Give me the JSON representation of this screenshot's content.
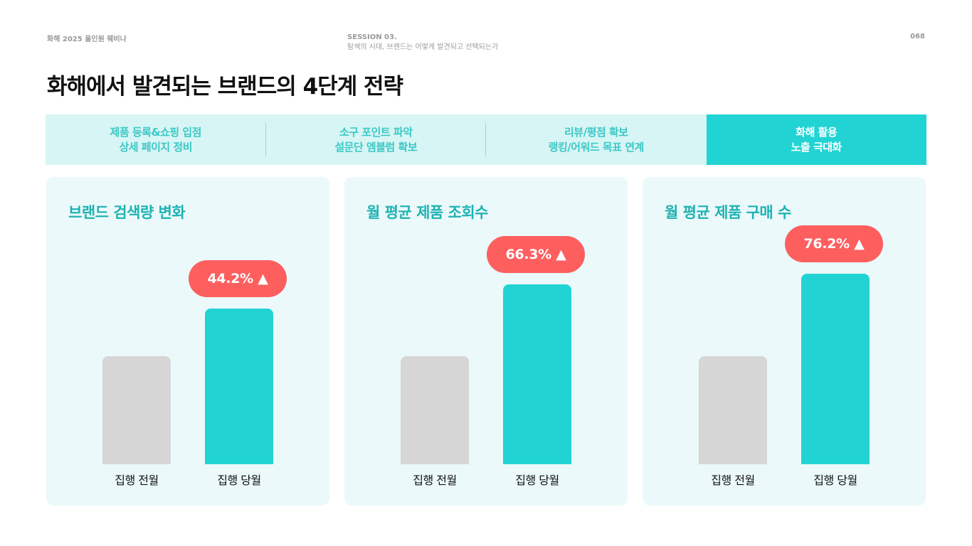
{
  "header": {
    "left": "화해 2025 올인원 웨비나",
    "session": "SESSION 03.",
    "session_sub": "탐색의 시대, 브랜드는 어떻게 발견되고 선택되는가",
    "page_number": "068"
  },
  "title": "화해에서 발견되는 브랜드의 4단계 전략",
  "steps": [
    {
      "line1": "제품 등록&쇼핑 입점",
      "line2": "상세 페이지 정비",
      "active": false
    },
    {
      "line1": "소구 포인트 파악",
      "line2": "설문단 엠블럼 확보",
      "active": false
    },
    {
      "line1": "리뷰/평점 확보",
      "line2": "랭킹/어워드 목표 연계",
      "active": false
    },
    {
      "line1": "화해 활용",
      "line2": "노출 극대화",
      "active": true
    }
  ],
  "colors": {
    "accent": "#22d3d4",
    "accent_text": "#1fb2b3",
    "step_bg": "#d6f5f4",
    "panel_bg": "#ebf9fa",
    "prev_bar": "#d6d6d6",
    "badge": "#fd5f5f"
  },
  "chart_data": [
    {
      "type": "bar",
      "title": "브랜드 검색량 변화",
      "categories": [
        "집행 전월",
        "집행 당월"
      ],
      "values": [
        100,
        144.2
      ],
      "annotation": "44.2% ▲"
    },
    {
      "type": "bar",
      "title": "월 평균 제품 조회수",
      "categories": [
        "집행 전월",
        "집행 당월"
      ],
      "values": [
        100,
        166.3
      ],
      "annotation": "66.3% ▲"
    },
    {
      "type": "bar",
      "title": "월 평균 제품 구매 수",
      "categories": [
        "집행 전월",
        "집행 당월"
      ],
      "values": [
        100,
        176.2
      ],
      "annotation": "76.2% ▲"
    }
  ]
}
